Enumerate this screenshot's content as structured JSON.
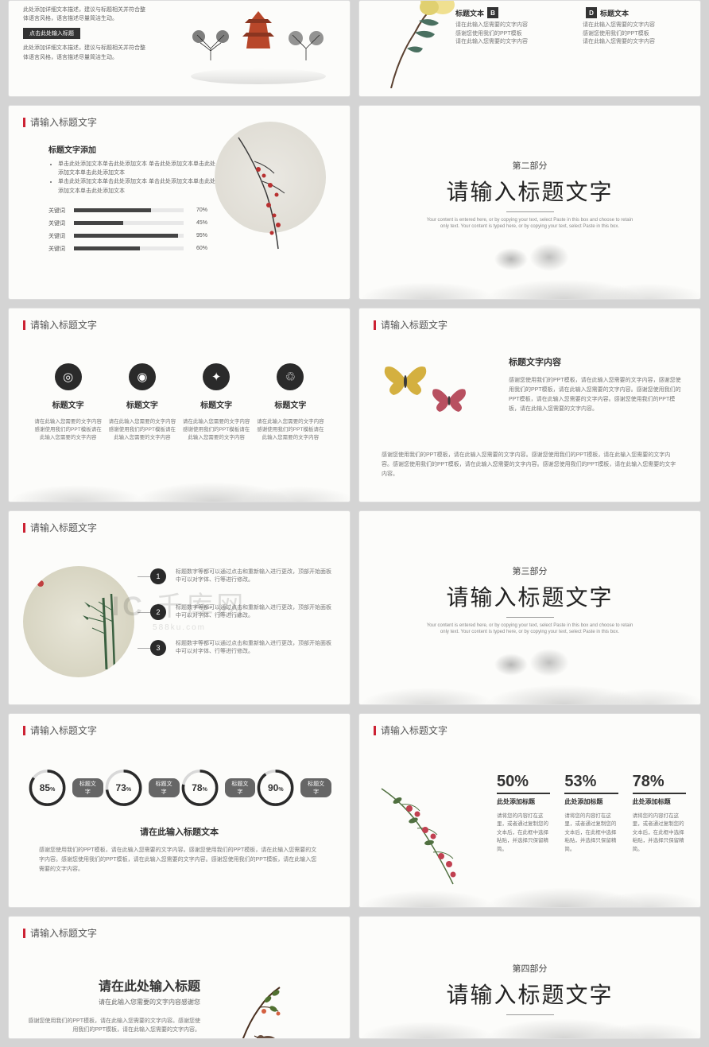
{
  "watermark": {
    "main": "千库网",
    "sub": "588ku.com",
    "logo": "IC"
  },
  "common": {
    "header": "请输入标题文字",
    "title_label": "标题文字",
    "desc_short": "请在此输入您需要的文字内容感谢使用我们的PPT模板请在此输入您需要的文字内容",
    "desc_long": "感谢您使用我们的PPT模板，请在此输入您需要的文字内容。感谢您使用我们的PPT模板，请在此输入您需要的文字内容。感谢您使用我们的PPT模板，请在此输入您需要的文字内容。感谢您使用我们的PPT模板，请在此输入您需要的文字内容。"
  },
  "slide1": {
    "text1": "此处添加详细文本描述，建议与标题相关并符合整体语言风格，语言描述尽量简洁生动。",
    "btn": "点击此处输入标题",
    "text2": "此处添加详细文本描述，建议与标题相关并符合整体语言风格，语言描述尽量简洁生动。",
    "colors": {
      "pagoda": "#b8472a",
      "tree": "#2a2a2a"
    }
  },
  "slide2": {
    "items": [
      {
        "badge": "B",
        "label": "标题文本",
        "pos": "left"
      },
      {
        "badge": "D",
        "label": "标题文本",
        "pos": "left"
      }
    ],
    "line1": "请在此输入您需要的文字内容",
    "line2": "感谢您使用我们的PPT模板",
    "line3": "请在此输入您需要的文字内容",
    "flower_colors": {
      "petal": "#e8d878",
      "leaf": "#4a7060",
      "stem": "#5a4030"
    }
  },
  "slide3": {
    "title": "标题文字添加",
    "bullets": [
      "单击此处添加文本单击此处添加文本 单击此处添加文本单击此处添加文本单击此处添加文本",
      "单击此处添加文本单击此处添加文本 单击此处添加文本单击此处添加文本单击此处添加文本"
    ],
    "bars": [
      {
        "k": "关键词",
        "v": 70
      },
      {
        "k": "关键词",
        "v": 45
      },
      {
        "k": "关键词",
        "v": 95
      },
      {
        "k": "关键词",
        "v": 60
      }
    ],
    "colors": {
      "circle": "#e5e2d8",
      "berry": "#b83030",
      "branch": "#3a3a3a"
    }
  },
  "section2": {
    "part": "第二部分",
    "title": "请输入标题文字",
    "sub": "Your content is entered here, or by copying your text, select Paste in this box and choose to retain only text. Your content is typed here, or by copying your text, select Paste in this box."
  },
  "slide5": {
    "items": [
      {
        "icon": "◎",
        "title": "标题文字"
      },
      {
        "icon": "◉",
        "title": "标题文字"
      },
      {
        "icon": "✦",
        "title": "标题文字"
      },
      {
        "icon": "♲",
        "title": "标题文字"
      }
    ],
    "desc": "请在此输入您需要的文字内容感谢使用我们的PPT模板请在此输入您需要的文字内容"
  },
  "slide6": {
    "title": "标题文字内容",
    "p1": "感谢您使用我们的PPT模板，请在此输入您需要的文字内容，感谢您使用我们的PPT模板，请在此输入您需要的文字内容。感谢您使用我们的PPT模板，请在此输入您需要的文字内容。感谢您使用我们的PPT模板，请在此输入您需要的文字内容。",
    "p2": "感谢您使用我们的PPT模板，请在此输入您需要的文字内容。感谢您使用我们的PPT模板，请在此输入您需要的文字内容。感谢您使用我们的PPT模板，请在此输入您需要的文字内容。感谢您使用我们的PPT模板，请在此输入您需要的文字内容。",
    "colors": {
      "b1": "#d4b040",
      "b2": "#b85060"
    }
  },
  "slide7": {
    "items": [
      {
        "n": "1",
        "t": "标题数字等都可以通过点击和重新输入进行更改，顶部开始面板中可以对字体、行等进行修改。"
      },
      {
        "n": "2",
        "t": "标题数字等都可以通过点击和重新输入进行更改，顶部开始面板中可以对字体、行等进行修改。"
      },
      {
        "n": "3",
        "t": "标题数字等都可以通过点击和重新输入进行更改，顶部开始面板中可以对字体、行等进行修改。"
      }
    ],
    "colors": {
      "bamboo": "#3a6040"
    }
  },
  "section3": {
    "part": "第三部分",
    "title": "请输入标题文字",
    "sub": "Your content is entered here, or by copying your text, select Paste in this box and choose to retain only text. Your content is typed here, or by copying your text, select Paste in this box."
  },
  "slide9": {
    "items": [
      {
        "v": 85,
        "label": "标题文字"
      },
      {
        "v": 73,
        "label": "标题文字"
      },
      {
        "v": 78,
        "label": "标题文字"
      },
      {
        "v": 90,
        "label": "标题文字"
      }
    ],
    "title": "请在此输入标题文本",
    "desc": "感谢您使用我们的PPT模板，请在此输入您需要的文字内容。感谢您使用我们的PPT模板，请在此输入您需要的文字内容。感谢您使用我们的PPT模板，请在此输入您需要的文字内容。感谢您使用我们的PPT模板，请在此输入您需要的文字内容。",
    "donut_color": "#2a2a2a",
    "donut_track": "#d8d8d8"
  },
  "slide10": {
    "stats": [
      {
        "v": "50%",
        "t": "此处添加标题",
        "d": "请将您的内容打在这里，或者通过复制您的文本后，在此框中选择粘贴，并选择只保留精简。"
      },
      {
        "v": "53%",
        "t": "此处添加标题",
        "d": "请将您的内容打在这里，或者通过复制您的文本后，在此框中选择粘贴，并选择只保留精简。"
      },
      {
        "v": "78%",
        "t": "此处添加标题",
        "d": "请将您的内容打在这里，或者通过复制您的文本后，在此框中选择粘贴，并选择只保留精简。"
      }
    ],
    "colors": {
      "flower": "#c04050",
      "leaf": "#507040"
    }
  },
  "slide11": {
    "title": "请在此处输入标题",
    "sub": "请在此输入您需要的文字内容感谢您",
    "desc": "感谢您使用我们的PPT模板，请在此输入您需要的文字内容。感谢您使用我们的PPT模板，请在此输入您需要的文字内容。",
    "colors": {
      "branch": "#4a3020",
      "leaf": "#507030",
      "bird": "#6a5040"
    }
  },
  "section4": {
    "part": "第四部分",
    "title": "请输入标题文字"
  }
}
